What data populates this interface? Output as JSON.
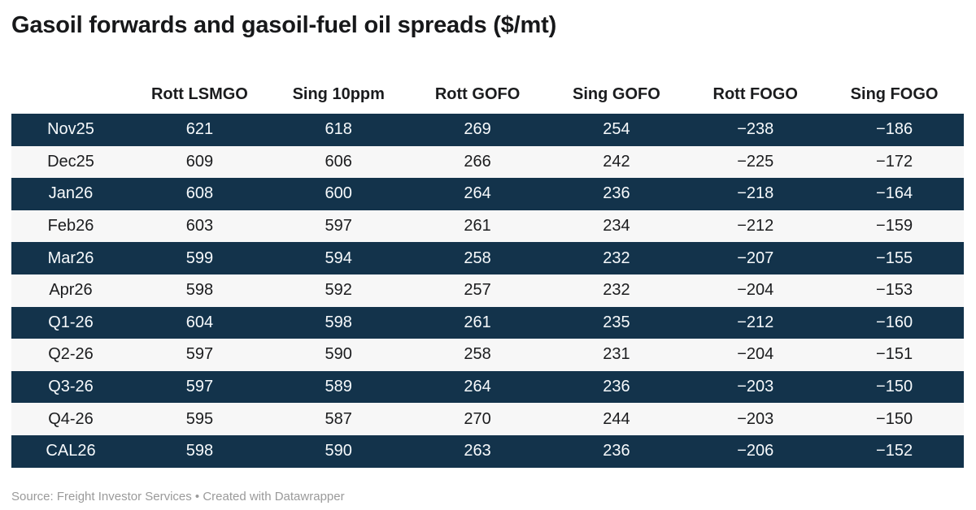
{
  "title": "Gasoil forwards and gasoil-fuel oil spreads ($/mt)",
  "table": {
    "columns": [
      "",
      "Rott LSMGO",
      "Sing 10ppm",
      "Rott GOFO",
      "Sing GOFO",
      "Rott FOGO",
      "Sing FOGO"
    ],
    "rows": [
      {
        "label": "Nov25",
        "values": [
          "621",
          "618",
          "269",
          "254",
          "−238",
          "−186"
        ]
      },
      {
        "label": "Dec25",
        "values": [
          "609",
          "606",
          "266",
          "242",
          "−225",
          "−172"
        ]
      },
      {
        "label": "Jan26",
        "values": [
          "608",
          "600",
          "264",
          "236",
          "−218",
          "−164"
        ]
      },
      {
        "label": "Feb26",
        "values": [
          "603",
          "597",
          "261",
          "234",
          "−212",
          "−159"
        ]
      },
      {
        "label": "Mar26",
        "values": [
          "599",
          "594",
          "258",
          "232",
          "−207",
          "−155"
        ]
      },
      {
        "label": "Apr26",
        "values": [
          "598",
          "592",
          "257",
          "232",
          "−204",
          "−153"
        ]
      },
      {
        "label": "Q1-26",
        "values": [
          "604",
          "598",
          "261",
          "235",
          "−212",
          "−160"
        ]
      },
      {
        "label": "Q2-26",
        "values": [
          "597",
          "590",
          "258",
          "231",
          "−204",
          "−151"
        ]
      },
      {
        "label": "Q3-26",
        "values": [
          "597",
          "589",
          "264",
          "236",
          "−203",
          "−150"
        ]
      },
      {
        "label": "Q4-26",
        "values": [
          "595",
          "587",
          "270",
          "244",
          "−203",
          "−150"
        ]
      },
      {
        "label": "CAL26",
        "values": [
          "598",
          "590",
          "263",
          "236",
          "−206",
          "−152"
        ]
      }
    ]
  },
  "footer": {
    "text": "Source: Freight Investor Services • Created with Datawrapper"
  },
  "colors": {
    "dark_row_bg": "#13334b",
    "light_row_bg": "#f7f7f7",
    "dark_row_text": "#f7fafc",
    "body_text": "#1b1c1e",
    "title_text": "#17181a",
    "footer_text": "#9a9a9a"
  },
  "chart_data": {
    "type": "table",
    "title": "Gasoil forwards and gasoil-fuel oil spreads ($/mt)",
    "categories": [
      "Nov25",
      "Dec25",
      "Jan26",
      "Feb26",
      "Mar26",
      "Apr26",
      "Q1-26",
      "Q2-26",
      "Q3-26",
      "Q4-26",
      "CAL26"
    ],
    "series": [
      {
        "name": "Rott LSMGO",
        "values": [
          621,
          609,
          608,
          603,
          599,
          598,
          604,
          597,
          597,
          595,
          598
        ]
      },
      {
        "name": "Sing 10ppm",
        "values": [
          618,
          606,
          600,
          597,
          594,
          592,
          598,
          590,
          589,
          587,
          590
        ]
      },
      {
        "name": "Rott GOFO",
        "values": [
          269,
          266,
          264,
          261,
          258,
          257,
          261,
          258,
          264,
          270,
          263
        ]
      },
      {
        "name": "Sing GOFO",
        "values": [
          254,
          242,
          236,
          234,
          232,
          232,
          235,
          231,
          236,
          244,
          236
        ]
      },
      {
        "name": "Rott FOGO",
        "values": [
          -238,
          -225,
          -218,
          -212,
          -207,
          -204,
          -212,
          -204,
          -203,
          -203,
          -206
        ]
      },
      {
        "name": "Sing FOGO",
        "values": [
          -186,
          -172,
          -164,
          -159,
          -155,
          -153,
          -160,
          -151,
          -150,
          -150,
          -152
        ]
      }
    ],
    "layout": {
      "row_striping": "alternating dark navy / light gray, starting dark",
      "source_note": "Source: Freight Investor Services",
      "credit": "Created with Datawrapper"
    }
  }
}
